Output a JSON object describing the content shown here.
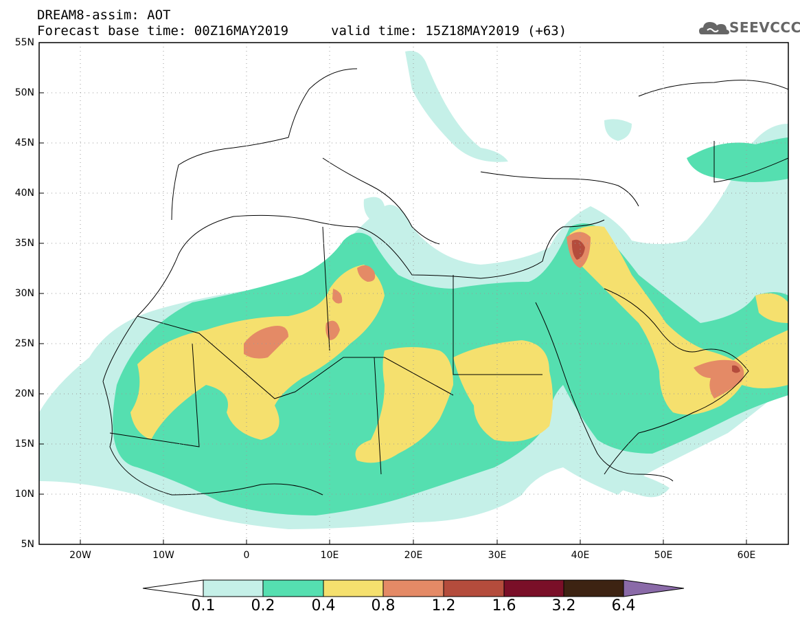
{
  "header": {
    "model_line": "DREAM8-assim: AOT",
    "base_time_line": "Forecast base time: 00Z16MAY2019",
    "valid_time_line": "valid time: 15Z18MAY2019 (+63)",
    "logo_text": "SEEVCCC"
  },
  "map": {
    "lat_labels": [
      "55N",
      "50N",
      "45N",
      "40N",
      "35N",
      "30N",
      "25N",
      "20N",
      "15N",
      "10N",
      "5N"
    ],
    "lon_labels": [
      "20W",
      "10W",
      "0",
      "10E",
      "20E",
      "30E",
      "40E",
      "50E",
      "60E"
    ],
    "lon_range": [
      -25,
      65
    ],
    "lat_range": [
      5,
      55
    ]
  },
  "colorbar": {
    "labels": [
      "0.1",
      "0.2",
      "0.4",
      "0.8",
      "1.2",
      "1.6",
      "3.2",
      "6.4"
    ],
    "colors": [
      "#ffffff",
      "#c5f0e8",
      "#55dfb0",
      "#f5e06e",
      "#e48a66",
      "#b44c3c",
      "#7a0f28",
      "#3d2312",
      "#8a6aa8"
    ]
  },
  "colors": {
    "c01": "#c5f0e8",
    "c02": "#55dfb0",
    "c04": "#f5e06e",
    "c08": "#e48a66",
    "c12": "#b44c3c"
  }
}
